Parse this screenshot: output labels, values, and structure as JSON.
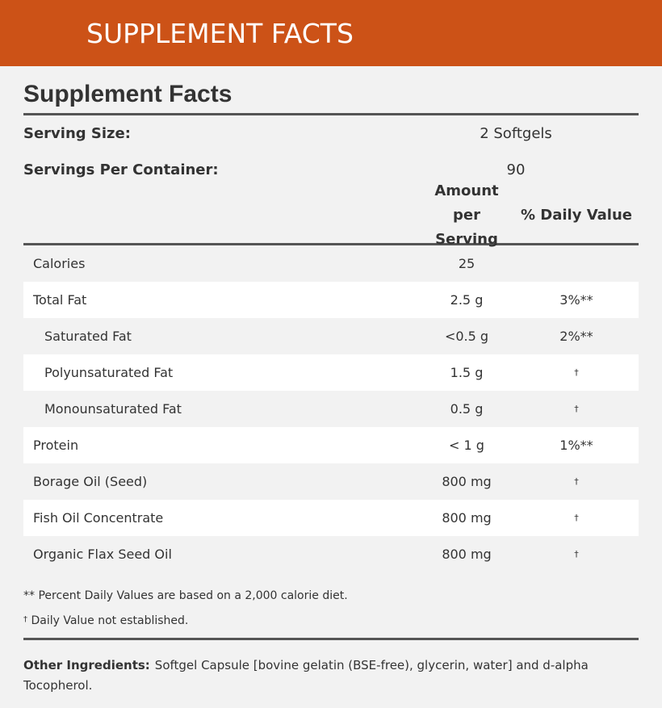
{
  "banner": {
    "title": "SUPPLEMENT FACTS"
  },
  "panel": {
    "title": "Supplement Facts",
    "serving_size": {
      "label": "Serving Size:",
      "value": "2 Softgels"
    },
    "servings_per_container": {
      "label": "Servings Per Container:",
      "value": "90"
    },
    "headers": {
      "amount_line1": "Amount per",
      "amount_line2": "Serving",
      "daily_value": "% Daily Value"
    },
    "rows": [
      {
        "name": "Calories",
        "amount": "25",
        "dv": "",
        "indent": false,
        "alt": false
      },
      {
        "name": "Total Fat",
        "amount": "2.5 g",
        "dv": "3%**",
        "indent": false,
        "alt": true
      },
      {
        "name": "Saturated Fat",
        "amount": "<0.5 g",
        "dv": "2%**",
        "indent": true,
        "alt": false
      },
      {
        "name": "Polyunsaturated Fat",
        "amount": "1.5 g",
        "dv": "†",
        "indent": true,
        "alt": true
      },
      {
        "name": "Monounsaturated Fat",
        "amount": "0.5 g",
        "dv": "†",
        "indent": true,
        "alt": false
      },
      {
        "name": "Protein",
        "amount": "< 1 g",
        "dv": "1%**",
        "indent": false,
        "alt": true
      },
      {
        "name": "Borage Oil (Seed)",
        "amount": "800 mg",
        "dv": "†",
        "indent": false,
        "alt": false
      },
      {
        "name": "Fish Oil Concentrate",
        "amount": "800 mg",
        "dv": "†",
        "indent": false,
        "alt": true
      },
      {
        "name": "Organic Flax Seed Oil",
        "amount": "800 mg",
        "dv": "†",
        "indent": false,
        "alt": false
      }
    ],
    "notes": {
      "daily_values": "** Percent Daily Values are based on a 2,000 calorie diet.",
      "dagger_symbol": "†",
      "not_established": "Daily Value not established."
    },
    "other_ingredients": {
      "label": "Other Ingredients:",
      "text": "Softgel Capsule [bovine gelatin (BSE-free), glycerin, water] and d-alpha Tocopherol."
    }
  }
}
